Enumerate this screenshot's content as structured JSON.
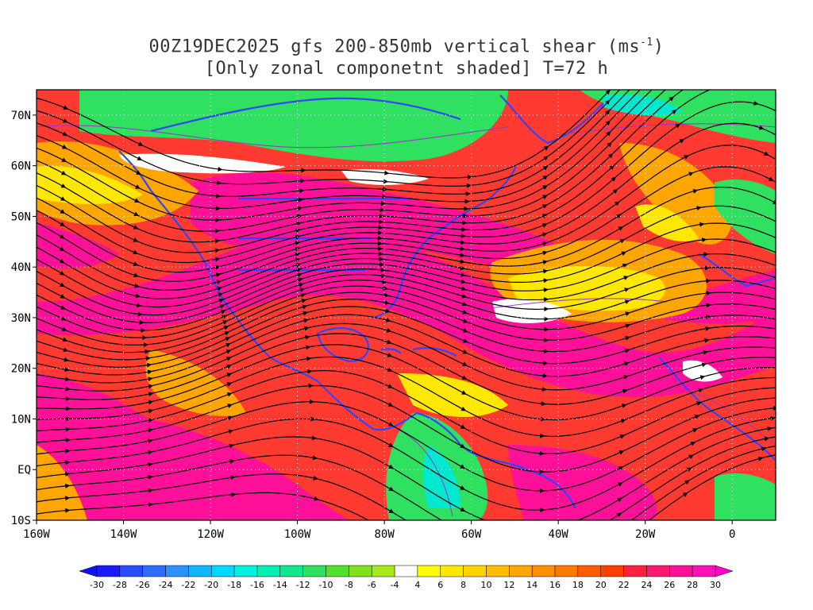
{
  "title": {
    "line1_prefix": "00Z19DEC2025 gfs 200-850mb vertical shear (ms",
    "line1_sup": "-1",
    "line1_suffix": ")",
    "line2": "[Only zonal componetnt shaded] T=72 h"
  },
  "map": {
    "lon_range": [
      -160,
      10
    ],
    "lat_range": [
      -10,
      75
    ],
    "lat_ticks": [
      {
        "value": 70,
        "label": "70N"
      },
      {
        "value": 60,
        "label": "60N"
      },
      {
        "value": 50,
        "label": "50N"
      },
      {
        "value": 40,
        "label": "40N"
      },
      {
        "value": 30,
        "label": "30N"
      },
      {
        "value": 20,
        "label": "20N"
      },
      {
        "value": 10,
        "label": "10N"
      },
      {
        "value": 0,
        "label": "EQ"
      },
      {
        "value": -10,
        "label": "10S"
      }
    ],
    "lon_ticks": [
      {
        "value": -160,
        "label": "160W"
      },
      {
        "value": -140,
        "label": "140W"
      },
      {
        "value": -120,
        "label": "120W"
      },
      {
        "value": -100,
        "label": "100W"
      },
      {
        "value": -80,
        "label": "80W"
      },
      {
        "value": -60,
        "label": "60W"
      },
      {
        "value": -40,
        "label": "40W"
      },
      {
        "value": -20,
        "label": "20W"
      },
      {
        "value": 0,
        "label": "0"
      }
    ],
    "coastline_color": "#3344ff",
    "streamline_color": "#000000"
  },
  "colorbar": {
    "labels": [
      "-30",
      "-28",
      "-26",
      "-24",
      "-22",
      "-20",
      "-18",
      "-16",
      "-14",
      "-12",
      "-10",
      "-8",
      "-6",
      "-4",
      "4",
      "6",
      "8",
      "10",
      "12",
      "14",
      "16",
      "18",
      "20",
      "22",
      "24",
      "26",
      "28",
      "30"
    ],
    "colors": [
      "#1a1aff",
      "#2a4cff",
      "#2f6dff",
      "#2f8fff",
      "#15b4ff",
      "#00d8ff",
      "#00f0e0",
      "#00f0b0",
      "#10e88a",
      "#30e060",
      "#50e030",
      "#80e020",
      "#a8e820",
      "#ffffff",
      "#ffff00",
      "#ffe800",
      "#ffd200",
      "#ffbc00",
      "#ffa600",
      "#ff9000",
      "#ff7800",
      "#ff5e00",
      "#ff4000",
      "#ff2040",
      "#ff1870",
      "#ff1098",
      "#ff10b8"
    ],
    "low_arrow_color": "#1010ff",
    "high_arrow_color": "#ff00d0"
  }
}
